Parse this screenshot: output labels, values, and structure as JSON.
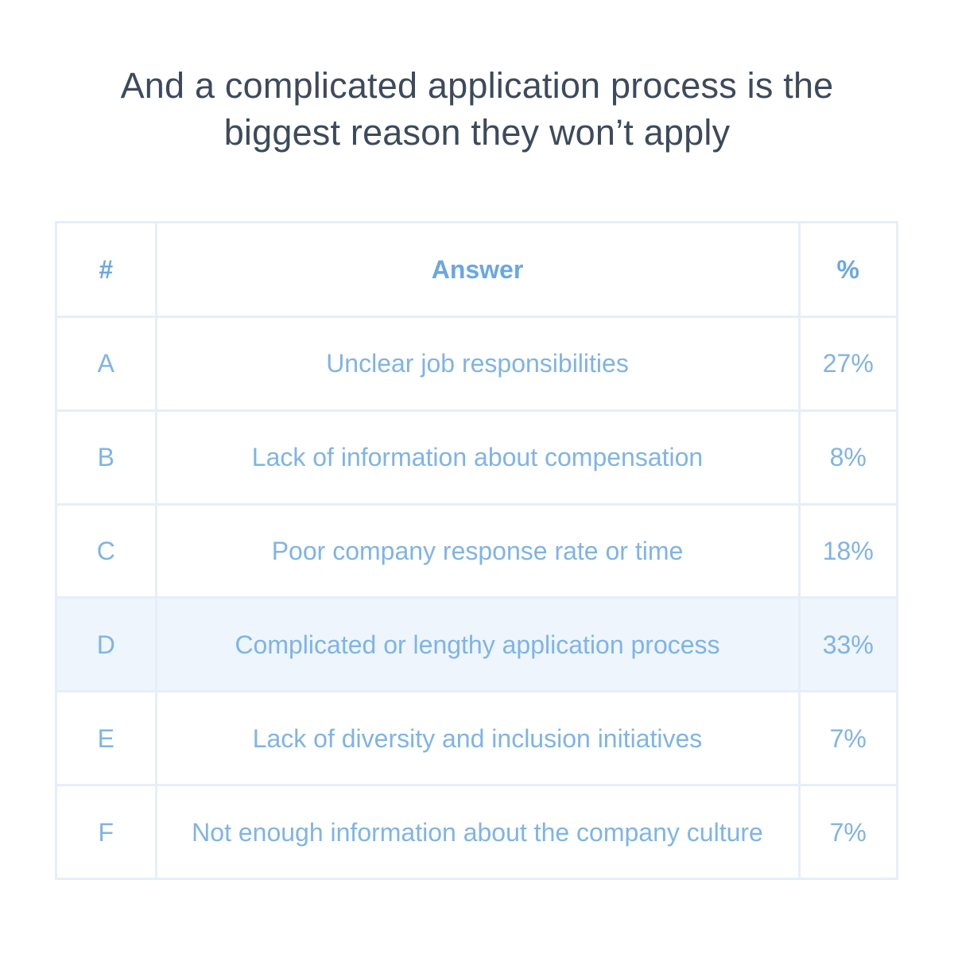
{
  "title_line1": "And a complicated application process is the",
  "title_line2": "biggest reason they won’t apply",
  "chart_data": {
    "type": "table",
    "columns": [
      "#",
      "Answer",
      "%"
    ],
    "rows": [
      {
        "id": "A",
        "answer": "Unclear job responsibilities",
        "percent": "27%",
        "value": 27
      },
      {
        "id": "B",
        "answer": "Lack of information about compensation",
        "percent": "8%",
        "value": 8
      },
      {
        "id": "C",
        "answer": "Poor company response rate or time",
        "percent": "18%",
        "value": 18
      },
      {
        "id": "D",
        "answer": "Complicated or lengthy application process",
        "percent": "33%",
        "value": 33,
        "highlighted": true
      },
      {
        "id": "E",
        "answer": "Lack of diversity and inclusion initiatives",
        "percent": "7%",
        "value": 7
      },
      {
        "id": "F",
        "answer": "Not enough information about the company culture",
        "percent": "7%",
        "value": 7
      }
    ]
  },
  "colors": {
    "title": "#3d4a5c",
    "header_text": "#6aa7e3",
    "cell_text": "#7fb4e6",
    "border": "#e6eef8",
    "highlight_row": "#eef5fd"
  }
}
